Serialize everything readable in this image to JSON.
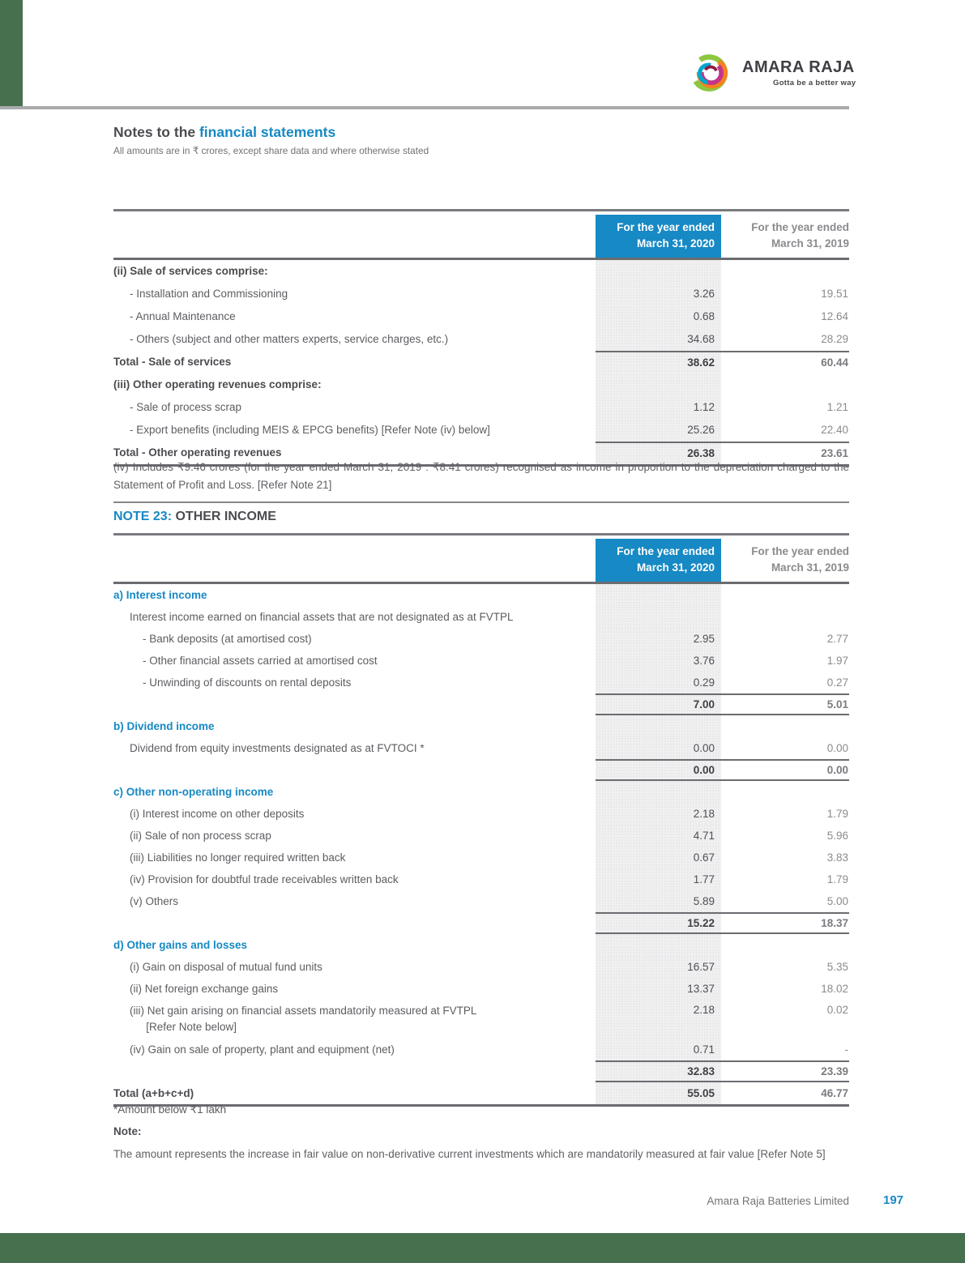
{
  "logo": {
    "brand": "AMARA RAJA",
    "tagline": "Gotta be a better way"
  },
  "header": {
    "title_prefix": "Notes to the ",
    "title_highlight": "financial statements",
    "subtitle": "All amounts are in ₹ crores, except share data and where otherwise stated"
  },
  "columns": {
    "h2020": "For the year ended\nMarch 31, 2020",
    "h2019": "For the year ended\nMarch 31, 2019"
  },
  "table1": {
    "rows": [
      {
        "label": "(ii) Sale of services comprise:",
        "style": "head"
      },
      {
        "label": "- Installation and Commissioning",
        "indent": 1,
        "v20": "3.26",
        "v19": "19.51"
      },
      {
        "label": "- Annual Maintenance",
        "indent": 1,
        "v20": "0.68",
        "v19": "12.64"
      },
      {
        "label": "- Others (subject and other matters experts, service charges, etc.)",
        "indent": 1,
        "v20": "34.68",
        "v19": "28.29"
      },
      {
        "label": "Total - Sale of services",
        "style": "total",
        "v20": "38.62",
        "v19": "60.44",
        "ra": true
      },
      {
        "label": "(iii) Other operating revenues comprise:",
        "style": "head"
      },
      {
        "label": "- Sale of process scrap",
        "indent": 1,
        "v20": "1.12",
        "v19": "1.21"
      },
      {
        "label": "- Export benefits (including MEIS & EPCG benefits) [Refer Note (iv) below]",
        "indent": 1,
        "v20": "25.26",
        "v19": "22.40"
      },
      {
        "label": "Total - Other operating revenues",
        "style": "total",
        "v20": "26.38",
        "v19": "23.61",
        "ra": true,
        "rbf": true
      }
    ]
  },
  "note_iv": "(iv) Includes ₹9.46 crores (for the year ended March 31, 2019 : ₹8.41 crores) recognised as income in proportion to the depreciation charged to the Statement of Profit and Loss. [Refer Note 21]",
  "note23": {
    "prefix": "NOTE 23: ",
    "title": "OTHER INCOME"
  },
  "table2": {
    "rows": [
      {
        "label": "a) Interest income",
        "style": "blue"
      },
      {
        "label": "Interest income earned on financial assets that are not designated as at FVTPL",
        "indent": 1
      },
      {
        "label": "- Bank deposits (at amortised cost)",
        "indent": 2,
        "v20": "2.95",
        "v19": "2.77"
      },
      {
        "label": "- Other financial assets carried at amortised cost",
        "indent": 2,
        "v20": "3.76",
        "v19": "1.97"
      },
      {
        "label": "- Unwinding of discounts on rental deposits",
        "indent": 2,
        "v20": "0.29",
        "v19": "0.27"
      },
      {
        "label": "",
        "style": "subtotal",
        "v20": "7.00",
        "v19": "5.01",
        "ra": true,
        "rb": true
      },
      {
        "label": "b) Dividend income",
        "style": "blue"
      },
      {
        "label": "Dividend from equity investments designated as at FVTOCI *",
        "indent": 1,
        "v20": "0.00",
        "v19": "0.00"
      },
      {
        "label": "",
        "style": "subtotal",
        "v20": "0.00",
        "v19": "0.00",
        "ra": true,
        "rb": true
      },
      {
        "label": "c) Other non-operating income",
        "style": "blue"
      },
      {
        "label": "(i) Interest income on other deposits",
        "indent": 1,
        "v20": "2.18",
        "v19": "1.79"
      },
      {
        "label": "(ii) Sale of non process scrap",
        "indent": 1,
        "v20": "4.71",
        "v19": "5.96"
      },
      {
        "label": "(iii) Liabilities no longer required written back",
        "indent": 1,
        "v20": "0.67",
        "v19": "3.83"
      },
      {
        "label": "(iv) Provision for doubtful trade receivables written back",
        "indent": 1,
        "v20": "1.77",
        "v19": "1.79"
      },
      {
        "label": "(v) Others",
        "indent": 1,
        "v20": "5.89",
        "v19": "5.00"
      },
      {
        "label": "",
        "style": "subtotal",
        "v20": "15.22",
        "v19": "18.37",
        "ra": true,
        "rb": true
      },
      {
        "label": "d) Other gains and losses",
        "style": "blue"
      },
      {
        "label": "(i) Gain on disposal of mutual fund units",
        "indent": 1,
        "v20": "16.57",
        "v19": "5.35"
      },
      {
        "label": "(ii) Net foreign exchange gains",
        "indent": 1,
        "v20": "13.37",
        "v19": "18.02"
      },
      {
        "label": "(iii) Net gain arising on financial assets mandatorily measured at  FVTPL\n  [Refer Note below]",
        "indent": 1,
        "two": true,
        "v20": "2.18",
        "v19": "0.02"
      },
      {
        "label": "(iv) Gain on sale of property, plant and equipment (net)",
        "indent": 1,
        "v20": "0.71",
        "v19": "-"
      },
      {
        "label": "",
        "style": "subtotal",
        "v20": "32.83",
        "v19": "23.39",
        "ra": true,
        "rb": true
      },
      {
        "label": "Total (a+b+c+d)",
        "style": "total",
        "v20": "55.05",
        "v19": "46.77",
        "rbf": true
      }
    ]
  },
  "footnotes": {
    "amount_note": "*Amount below ₹1 lakh",
    "note_label": "Note:",
    "note_text": "The amount represents the increase in fair value on non-derivative current investments which are mandatorily measured at fair value [Refer Note 5]"
  },
  "footer": {
    "company": "Amara Raja Batteries Limited",
    "page_number": "197"
  },
  "colors": {
    "accent_blue": "#1789C4",
    "decor_green": "#47704E",
    "column_band": "#F0F0F1",
    "value_2019_gray": "#8A8B8E"
  }
}
